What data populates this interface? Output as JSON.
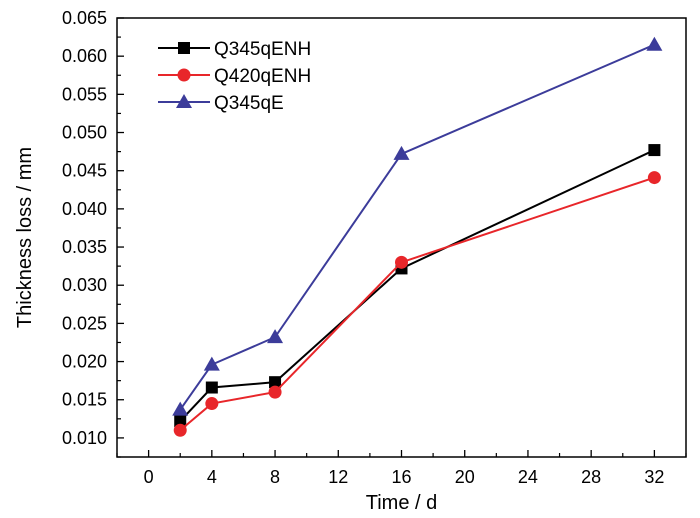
{
  "chart_data": {
    "type": "line",
    "title": "",
    "xlabel": "Time / d",
    "ylabel": "Thickness loss / mm",
    "xlim": [
      -2,
      34
    ],
    "ylim": [
      0.0075,
      0.065
    ],
    "xticks": [
      0,
      4,
      8,
      12,
      16,
      20,
      24,
      28,
      32
    ],
    "xtick_labels": [
      "0",
      "4",
      "8",
      "12",
      "16",
      "20",
      "24",
      "28",
      "32"
    ],
    "yticks": [
      0.01,
      0.015,
      0.02,
      0.025,
      0.03,
      0.035,
      0.04,
      0.045,
      0.05,
      0.055,
      0.06,
      0.065
    ],
    "ytick_labels": [
      "0.010",
      "0.015",
      "0.020",
      "0.025",
      "0.030",
      "0.035",
      "0.040",
      "0.045",
      "0.050",
      "0.055",
      "0.060",
      "0.065"
    ],
    "legend_position": "top-left",
    "series": [
      {
        "name": "Q345qENH",
        "color": "#000000",
        "marker": "square",
        "x": [
          2,
          4,
          8,
          16,
          32
        ],
        "y": [
          0.0122,
          0.0166,
          0.0173,
          0.0322,
          0.0477
        ]
      },
      {
        "name": "Q420qENH",
        "color": "#e8262a",
        "marker": "circle",
        "x": [
          2,
          4,
          8,
          16,
          32
        ],
        "y": [
          0.011,
          0.0145,
          0.016,
          0.033,
          0.0441
        ]
      },
      {
        "name": "Q345qE",
        "color": "#3c3c9a",
        "marker": "triangle",
        "x": [
          2,
          4,
          8,
          16,
          32
        ],
        "y": [
          0.0137,
          0.0196,
          0.0232,
          0.0472,
          0.0615
        ]
      }
    ]
  }
}
